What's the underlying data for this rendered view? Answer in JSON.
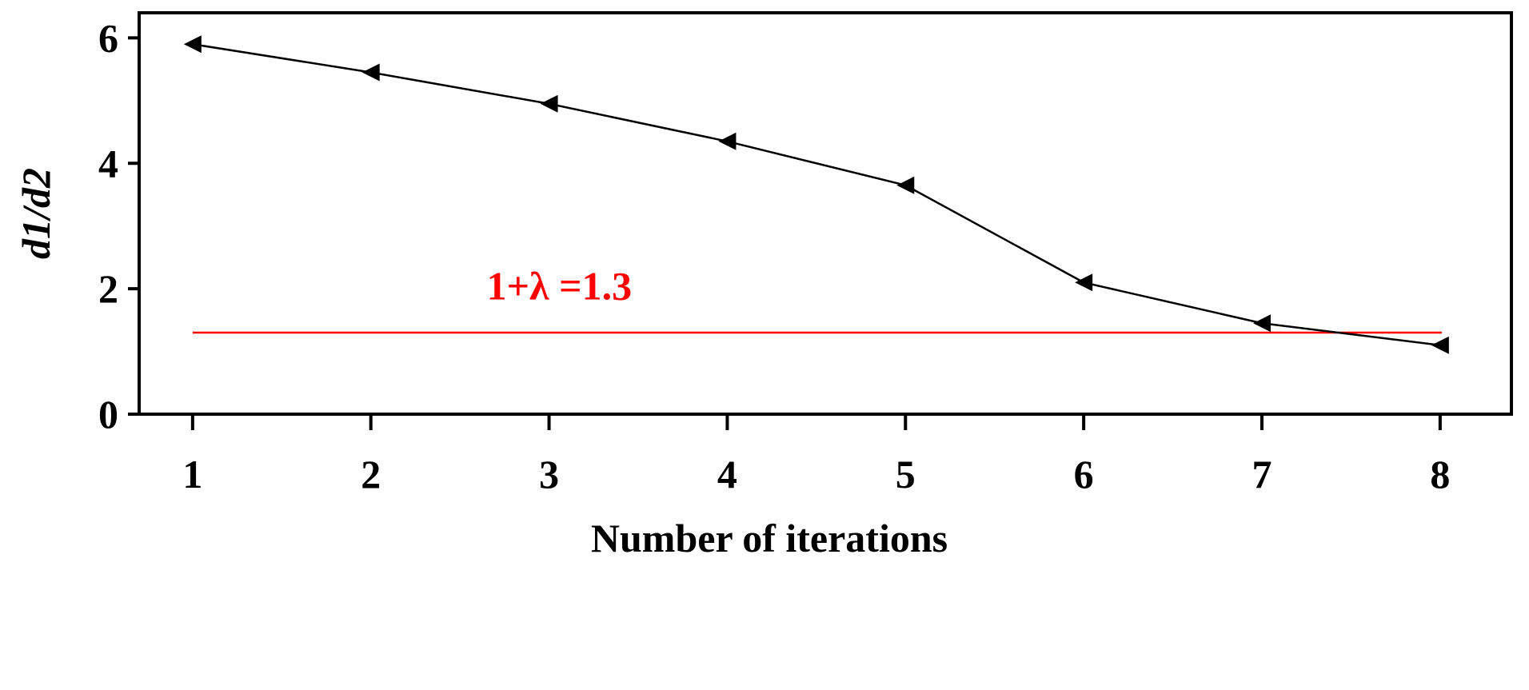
{
  "chart_data": {
    "type": "line",
    "xlabel": "Number of iterations",
    "ylabel": "d1/d2",
    "x": [
      1,
      2,
      3,
      4,
      5,
      6,
      7,
      8
    ],
    "xlim": [
      0.7,
      8.4
    ],
    "ylim": [
      0,
      6.4
    ],
    "yticks": [
      0,
      2,
      4,
      6
    ],
    "series": [
      {
        "values": [
          5.9,
          5.45,
          4.95,
          4.35,
          3.65,
          2.1,
          1.45,
          1.1
        ],
        "color": "#000000",
        "marker": "left-triangle"
      }
    ],
    "reference_line": {
      "y": 1.3,
      "color": "#ff0000",
      "label": "1+λ =1.3"
    },
    "grid": false
  }
}
